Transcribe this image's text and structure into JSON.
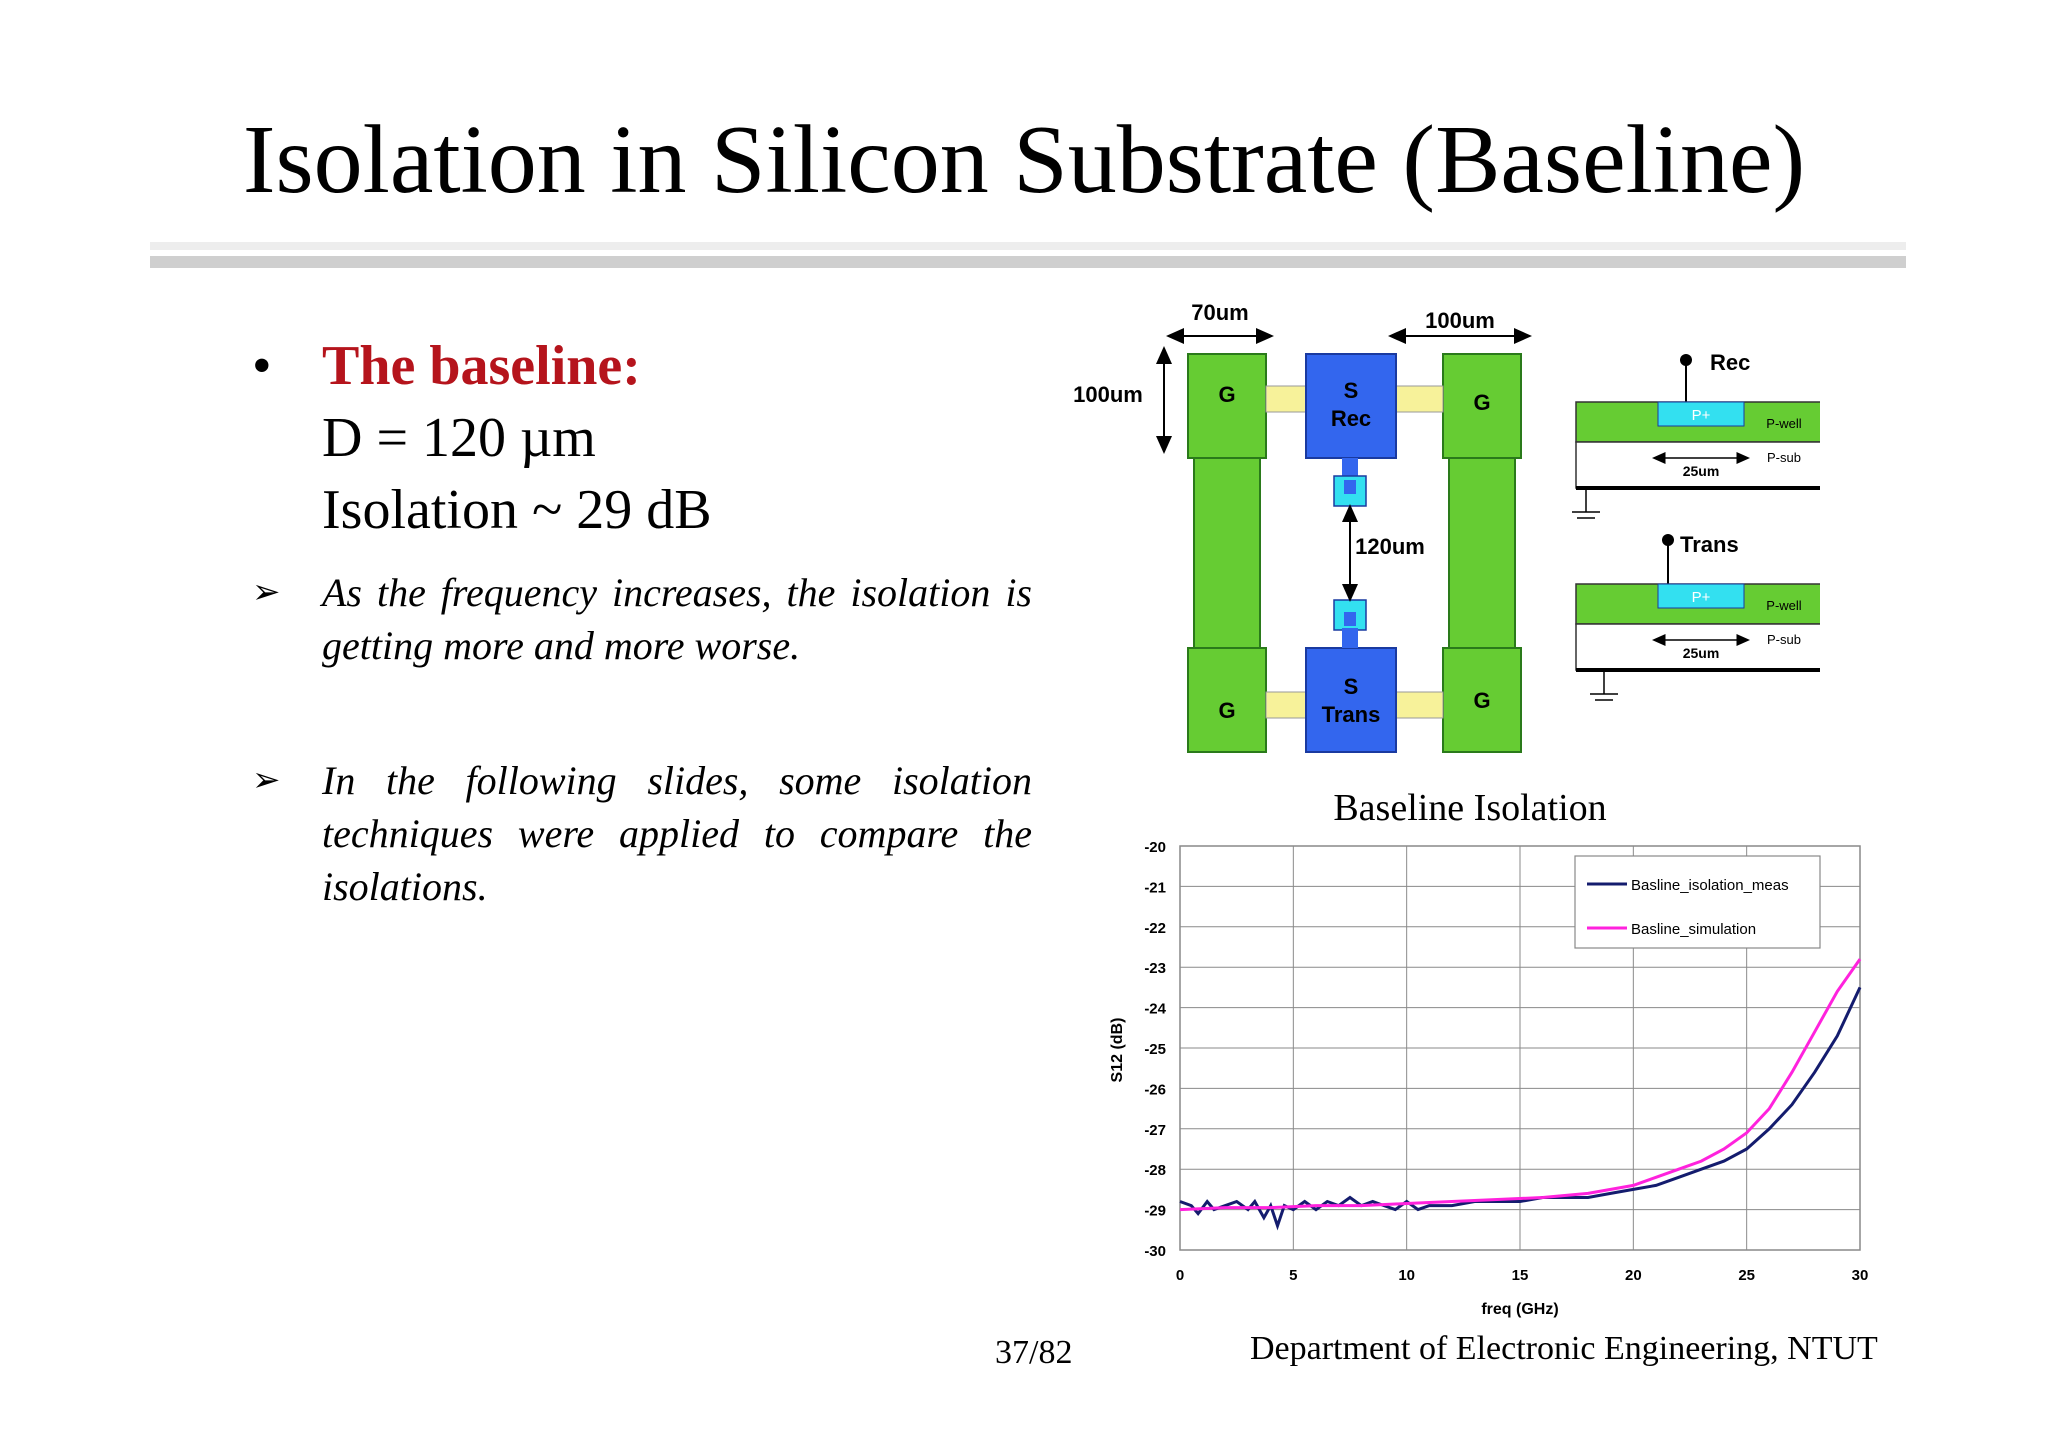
{
  "slide": {
    "title": "Isolation in Silicon Substrate (Baseline)",
    "bullet": {
      "marker": "•",
      "heading": "The baseline:",
      "lines": [
        "D = 120 µm",
        "Isolation ~ 29 dB"
      ]
    },
    "sub_bullets": [
      {
        "marker": "➢",
        "text": "As the frequency increases, the isolation is getting more and more worse."
      },
      {
        "marker": "➢",
        "text": "In the following slides, some isolation techniques were applied to compare the isolations."
      }
    ],
    "footer": {
      "page": "37/82",
      "department": "Department of Electronic Engineering, NTUT"
    }
  },
  "layout_diagram": {
    "dims": {
      "top_left": "70um",
      "top_right": "100um",
      "left": "100um",
      "middle": "120um"
    },
    "pads": {
      "ground": "G",
      "signal": "S",
      "rec": "Rec",
      "trans": "Trans"
    },
    "cross_sections": [
      {
        "label": "Rec",
        "implant": "P+",
        "well": "P-well",
        "sub": "P-sub",
        "width": "25um"
      },
      {
        "label": "Trans",
        "implant": "P+",
        "well": "P-well",
        "sub": "P-sub",
        "width": "25um"
      }
    ],
    "colors": {
      "ground": "#66cc33",
      "signal": "#3366ee",
      "bridge": "#f7f29a",
      "implant": "#33e0f0"
    }
  },
  "chart_data": {
    "type": "line",
    "title": "Baseline Isolation",
    "xlabel": "freq (GHz)",
    "ylabel": "S12 (dB)",
    "xlim": [
      0,
      30
    ],
    "ylim": [
      -30,
      -20
    ],
    "xticks": [
      0,
      5,
      10,
      15,
      20,
      25,
      30
    ],
    "yticks": [
      -20,
      -21,
      -22,
      -23,
      -24,
      -25,
      -26,
      -27,
      -28,
      -29,
      -30
    ],
    "grid": true,
    "legend": "top-right",
    "series": [
      {
        "name": "Basline_isolation_meas",
        "color": "#141c6e",
        "x": [
          0,
          0.5,
          0.8,
          1.2,
          1.5,
          2,
          2.5,
          3,
          3.3,
          3.7,
          4,
          4.3,
          4.6,
          5,
          5.5,
          6,
          6.5,
          7,
          7.5,
          8,
          8.5,
          9,
          9.5,
          10,
          10.5,
          11,
          12,
          13,
          14,
          15,
          16,
          17,
          18,
          19,
          20,
          21,
          22,
          23,
          24,
          25,
          26,
          27,
          28,
          29,
          30
        ],
        "values": [
          -28.8,
          -28.9,
          -29.1,
          -28.8,
          -29.0,
          -28.9,
          -28.8,
          -29.0,
          -28.8,
          -29.2,
          -28.9,
          -29.4,
          -28.9,
          -29.0,
          -28.8,
          -29.0,
          -28.8,
          -28.9,
          -28.7,
          -28.9,
          -28.8,
          -28.9,
          -29.0,
          -28.8,
          -29.0,
          -28.9,
          -28.9,
          -28.8,
          -28.8,
          -28.8,
          -28.7,
          -28.7,
          -28.7,
          -28.6,
          -28.5,
          -28.4,
          -28.2,
          -28.0,
          -27.8,
          -27.5,
          -27.0,
          -26.4,
          -25.6,
          -24.7,
          -23.5
        ]
      },
      {
        "name": "Basline_simulation",
        "color": "#ff22dd",
        "x": [
          0,
          2,
          4,
          6,
          8,
          10,
          12,
          14,
          16,
          18,
          19,
          20,
          21,
          22,
          23,
          24,
          25,
          26,
          27,
          28,
          29,
          30
        ],
        "values": [
          -29.0,
          -28.95,
          -28.95,
          -28.9,
          -28.9,
          -28.85,
          -28.8,
          -28.75,
          -28.7,
          -28.6,
          -28.5,
          -28.4,
          -28.2,
          -28.0,
          -27.8,
          -27.5,
          -27.1,
          -26.5,
          -25.6,
          -24.6,
          -23.6,
          -22.8
        ]
      }
    ]
  }
}
